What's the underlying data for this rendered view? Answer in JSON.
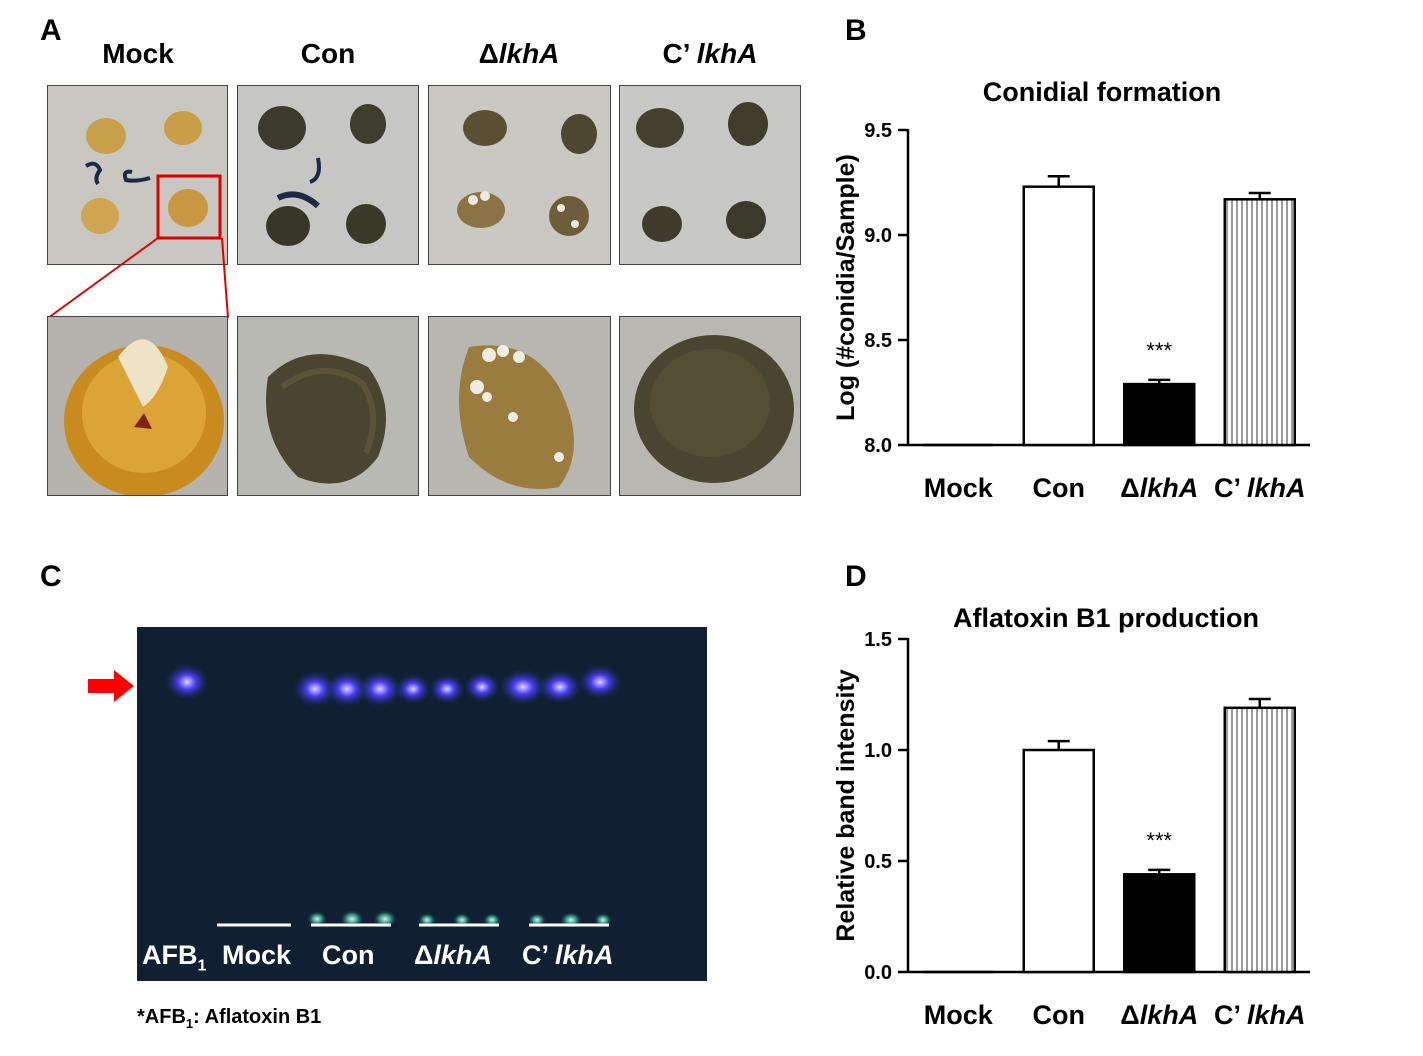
{
  "panels": {
    "a": "A",
    "b": "B",
    "c": "C",
    "d": "D"
  },
  "panel_a": {
    "columns": [
      {
        "prefix": "",
        "italic": "",
        "plain": "Mock"
      },
      {
        "prefix": "",
        "italic": "",
        "plain": "Con"
      },
      {
        "prefix": "Δ",
        "italic": "lkhA",
        "plain": ""
      },
      {
        "prefix": "C’ ",
        "italic": "lkhA",
        "plain": ""
      }
    ]
  },
  "panel_c": {
    "lanes": {
      "afb": "AFB",
      "afb_sub": "1",
      "mock": "Mock",
      "con": "Con",
      "delta_prefix": "Δ",
      "delta_italic": "lkhA",
      "comp_prefix": "C’ ",
      "comp_italic": "lkhA"
    },
    "footnote": {
      "star": "*AFB",
      "sub": "1",
      "rest": ": Aflatoxin B1"
    },
    "arrow_color": "#ff0000"
  },
  "chart_data": [
    {
      "type": "bar",
      "title": "Conidial formation",
      "xlabel": "",
      "ylabel": "Log (#conidia/Sample)",
      "categories": [
        "Mock",
        "Con",
        "ΔlkhA",
        "C’ lkhA"
      ],
      "category_parts": [
        {
          "prefix": "",
          "italic": "",
          "plain": "Mock"
        },
        {
          "prefix": "",
          "italic": "",
          "plain": "Con"
        },
        {
          "prefix": "Δ",
          "italic": "lkhA",
          "plain": ""
        },
        {
          "prefix": "C’ ",
          "italic": "lkhA",
          "plain": ""
        }
      ],
      "values": [
        8.0,
        9.23,
        8.29,
        9.17
      ],
      "errors": [
        0.0,
        0.05,
        0.02,
        0.03
      ],
      "fills": [
        "none",
        "white",
        "black",
        "striped"
      ],
      "ylim": [
        8.0,
        9.5
      ],
      "yticks": [
        "8.0",
        "8.5",
        "9.0",
        "9.5"
      ],
      "yticks_values": [
        8.0,
        8.5,
        9.0,
        9.5
      ],
      "annotations": [
        "",
        "",
        "***",
        ""
      ]
    },
    {
      "type": "bar",
      "title": "Aflatoxin B1 production",
      "xlabel": "",
      "ylabel": "Relative band intensity",
      "categories": [
        "Mock",
        "Con",
        "ΔlkhA",
        "C’ lkhA"
      ],
      "category_parts": [
        {
          "prefix": "",
          "italic": "",
          "plain": "Mock"
        },
        {
          "prefix": "",
          "italic": "",
          "plain": "Con"
        },
        {
          "prefix": "Δ",
          "italic": "lkhA",
          "plain": ""
        },
        {
          "prefix": "C’ ",
          "italic": "lkhA",
          "plain": ""
        }
      ],
      "values": [
        0.0,
        1.0,
        0.44,
        1.19
      ],
      "errors": [
        0.0,
        0.04,
        0.02,
        0.04
      ],
      "fills": [
        "none",
        "white",
        "black",
        "striped"
      ],
      "ylim": [
        0.0,
        1.5
      ],
      "yticks": [
        "0.0",
        "0.5",
        "1.0",
        "1.5"
      ],
      "yticks_values": [
        0.0,
        0.5,
        1.0,
        1.5
      ],
      "annotations": [
        "",
        "",
        "***",
        ""
      ]
    }
  ]
}
